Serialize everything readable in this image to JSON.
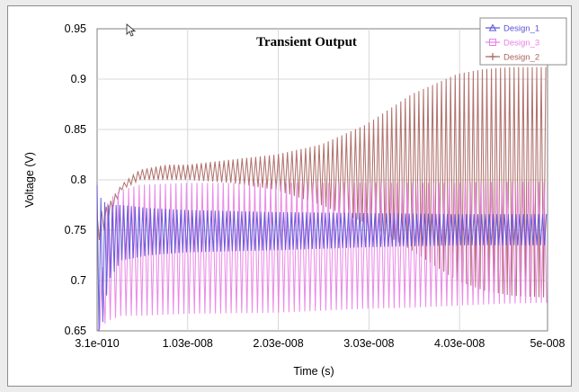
{
  "chart_data": {
    "type": "line",
    "title": "Transient Output",
    "xlabel": "Time (s)",
    "ylabel": "Voltage (V)",
    "x_tick_labels": [
      "3.1e-010",
      "1.03e-008",
      "2.03e-008",
      "3.03e-008",
      "4.03e-008",
      "5e-008"
    ],
    "x_ticks": [
      3.1e-10,
      1.03e-08,
      2.03e-08,
      3.03e-08,
      4.03e-08,
      5e-08
    ],
    "y_tick_labels": [
      "0.65",
      "0.7",
      "0.75",
      "0.8",
      "0.85",
      "0.9",
      "0.95"
    ],
    "y_ticks": [
      0.65,
      0.7,
      0.75,
      0.8,
      0.85,
      0.9,
      0.95
    ],
    "xlim": [
      3.1e-10,
      5e-08
    ],
    "ylim": [
      0.65,
      0.95
    ],
    "grid": true,
    "legend_position": "top-right",
    "series": [
      {
        "name": "Design_1",
        "color": "#5a52d6",
        "marker": "triangle",
        "oscillation_period": 4.2e-10,
        "envelope": {
          "t": [
            3.1e-10,
            8e-10,
            1.6e-09,
            3e-09,
            6e-09,
            1.03e-08,
            2e-08,
            3e-08,
            4e-08,
            5e-08
          ],
          "max": [
            0.795,
            0.78,
            0.775,
            0.775,
            0.772,
            0.77,
            0.768,
            0.767,
            0.766,
            0.766
          ],
          "min": [
            0.65,
            0.65,
            0.7,
            0.72,
            0.725,
            0.728,
            0.73,
            0.733,
            0.735,
            0.735
          ]
        }
      },
      {
        "name": "Design_3",
        "color": "#e97fe6",
        "marker": "square",
        "oscillation_period": 5.8e-10,
        "envelope": {
          "t": [
            3.1e-10,
            1.5e-09,
            3e-09,
            5e-09,
            1.03e-08,
            2e-08,
            2.5e-08,
            3e-08,
            3.5e-08,
            4e-08,
            4.5e-08,
            5e-08
          ],
          "max": [
            0.65,
            0.78,
            0.79,
            0.795,
            0.797,
            0.797,
            0.797,
            0.797,
            0.797,
            0.797,
            0.798,
            0.798
          ],
          "min": [
            0.65,
            0.66,
            0.665,
            0.665,
            0.667,
            0.668,
            0.67,
            0.672,
            0.673,
            0.675,
            0.677,
            0.678
          ]
        }
      },
      {
        "name": "Design_2",
        "color": "#a8645e",
        "marker": "plus",
        "oscillation_period": 5e-10,
        "envelope": {
          "t": [
            3.1e-10,
            1.5e-09,
            3e-09,
            5e-09,
            8e-09,
            1.03e-08,
            1.5e-08,
            2e-08,
            2.5e-08,
            3e-08,
            3.5e-08,
            4e-08,
            4.3e-08,
            4.6e-08,
            5e-08
          ],
          "max": [
            0.765,
            0.775,
            0.795,
            0.81,
            0.815,
            0.815,
            0.82,
            0.825,
            0.835,
            0.855,
            0.885,
            0.905,
            0.91,
            0.912,
            0.912
          ],
          "min": [
            0.735,
            0.76,
            0.79,
            0.8,
            0.8,
            0.8,
            0.797,
            0.79,
            0.775,
            0.757,
            0.73,
            0.7,
            0.69,
            0.685,
            0.683
          ]
        }
      }
    ]
  }
}
